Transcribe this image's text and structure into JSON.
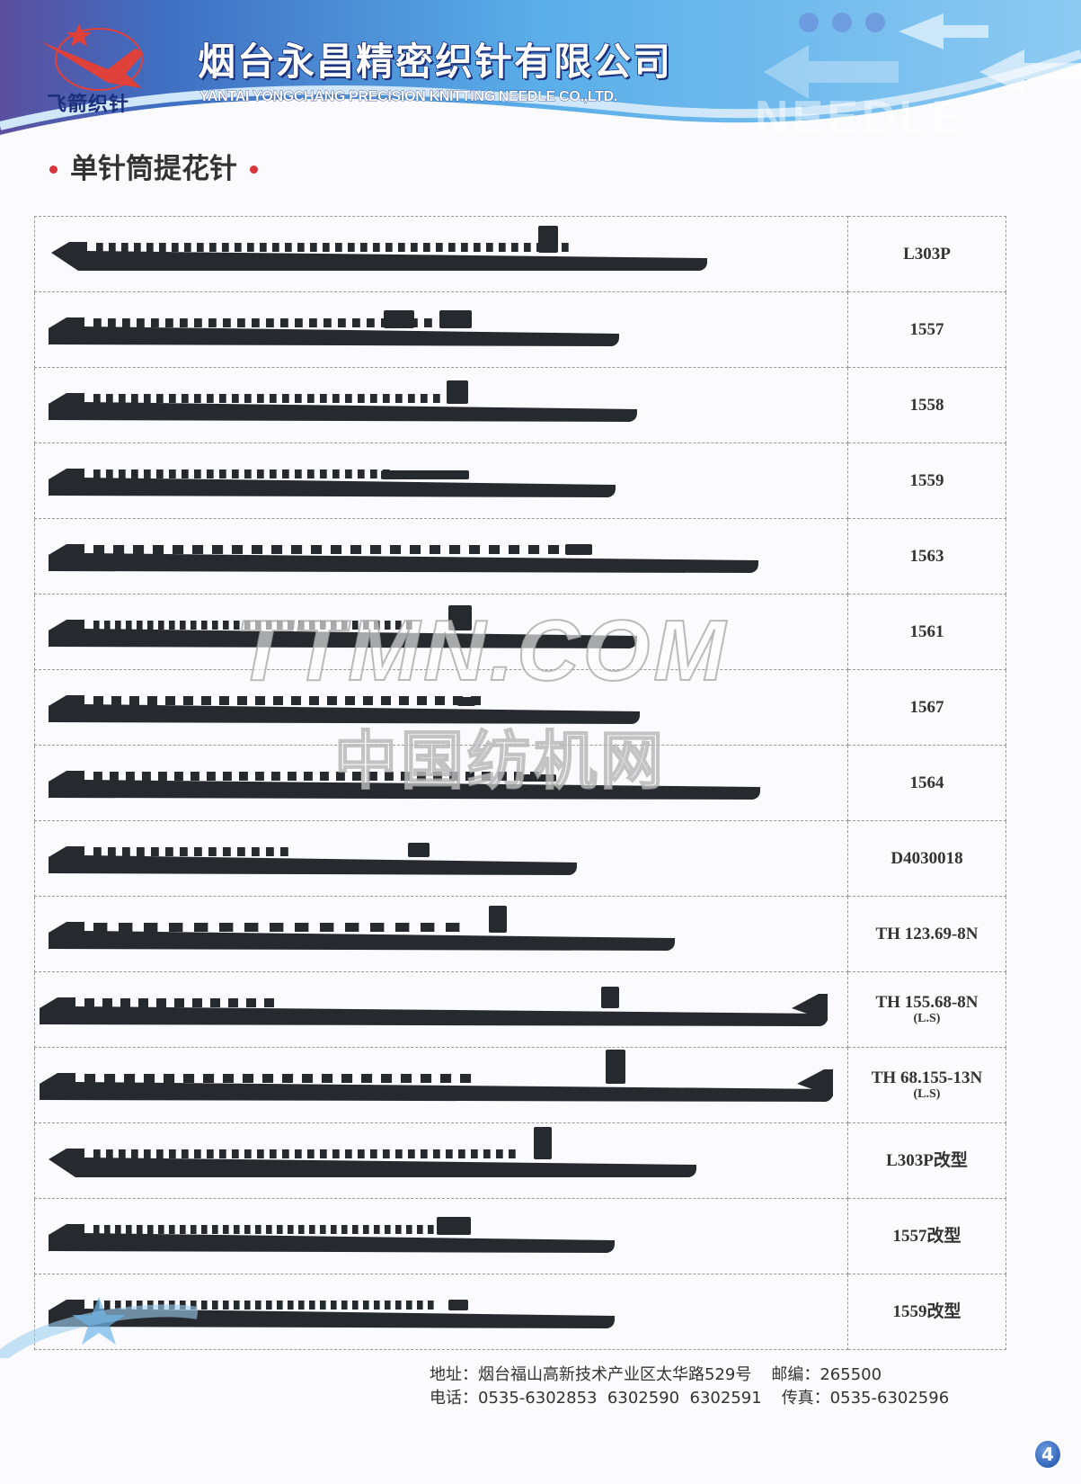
{
  "header": {
    "brand_cn": "飞箭织针",
    "company_cn": "烟台永昌精密织针有限公司",
    "company_en": "YANTAI YONGCHANG PRECISION KNITTING NEEDLE CO.,LTD.",
    "needle_word": "NEEDLE",
    "colors": {
      "blue": "#4aa3e6",
      "navy": "#1b2f7a",
      "red": "#e0403a"
    }
  },
  "section_title": "单针筒提花针",
  "products": [
    {
      "model": "L303P",
      "sub": ""
    },
    {
      "model": "1557",
      "sub": ""
    },
    {
      "model": "1558",
      "sub": ""
    },
    {
      "model": "1559",
      "sub": ""
    },
    {
      "model": "1563",
      "sub": ""
    },
    {
      "model": "1561",
      "sub": ""
    },
    {
      "model": "1567",
      "sub": ""
    },
    {
      "model": "1564",
      "sub": ""
    },
    {
      "model": "D4030018",
      "sub": ""
    },
    {
      "model": "TH 123.69-8N",
      "sub": ""
    },
    {
      "model": "TH 155.68-8N",
      "sub": "(L.S)"
    },
    {
      "model": "TH 68.155-13N",
      "sub": "(L.S)"
    },
    {
      "model": "L303P改型",
      "sub": ""
    },
    {
      "model": "1557改型",
      "sub": ""
    },
    {
      "model": "1559改型",
      "sub": ""
    }
  ],
  "watermark": {
    "line1": "TTMN.COM",
    "line2": "中国纺机网"
  },
  "footer": {
    "address": "地址：烟台福山高新技术产业区太华路529号",
    "postcode": "邮编：265500",
    "phone": "电话：0535-6302853  6302590  6302591",
    "fax": "传真：0535-6302596",
    "page": "4"
  }
}
